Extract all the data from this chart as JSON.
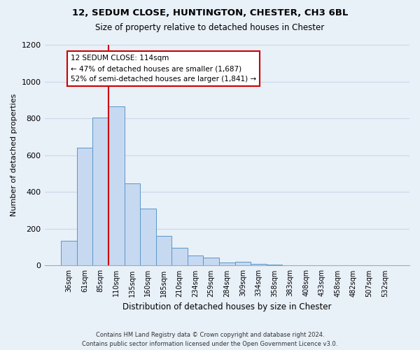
{
  "title": "12, SEDUM CLOSE, HUNTINGTON, CHESTER, CH3 6BL",
  "subtitle": "Size of property relative to detached houses in Chester",
  "xlabel": "Distribution of detached houses by size in Chester",
  "ylabel": "Number of detached properties",
  "bar_labels": [
    "36sqm",
    "61sqm",
    "85sqm",
    "110sqm",
    "135sqm",
    "160sqm",
    "185sqm",
    "210sqm",
    "234sqm",
    "259sqm",
    "284sqm",
    "309sqm",
    "334sqm",
    "358sqm",
    "383sqm",
    "408sqm",
    "433sqm",
    "458sqm",
    "482sqm",
    "507sqm",
    "532sqm"
  ],
  "bar_values": [
    135,
    640,
    805,
    865,
    445,
    310,
    160,
    95,
    55,
    42,
    15,
    20,
    10,
    5,
    2,
    1,
    1,
    0,
    1,
    0,
    1
  ],
  "bar_color": "#c6d9f1",
  "bar_edge_color": "#5a96c8",
  "vline_x_index": 3,
  "vline_color": "#cc0000",
  "annotation_line1": "12 SEDUM CLOSE: 114sqm",
  "annotation_line2": "← 47% of detached houses are smaller (1,687)",
  "annotation_line3": "52% of semi-detached houses are larger (1,841) →",
  "annotation_box_color": "#cc0000",
  "annotation_box_fill": "#ffffff",
  "ylim": [
    0,
    1200
  ],
  "yticks": [
    0,
    200,
    400,
    600,
    800,
    1000,
    1200
  ],
  "footer_text": "Contains HM Land Registry data © Crown copyright and database right 2024.\nContains public sector information licensed under the Open Government Licence v3.0.",
  "grid_color": "#ccd8e8",
  "bg_color": "#e8f0f8"
}
